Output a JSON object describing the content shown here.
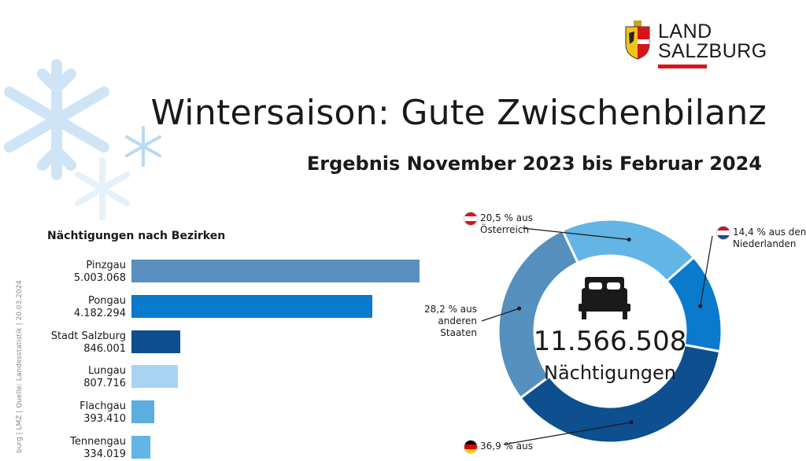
{
  "header": {
    "title": "Wintersaison: Gute Zwischenbilanz",
    "subtitle": "Ergebnis November 2023 bis Februar 2024"
  },
  "logo": {
    "line1": "LAND",
    "line2": "SALZBURG"
  },
  "source_note": "burg | LMZ | Quelle: Landesstatistik | 20.03.2024",
  "colors": {
    "accent_red": "#d7141a",
    "dark_blue": "#0d4f8f",
    "mid_blue": "#0a7acc",
    "steel_blue": "#5590bf",
    "light_blue": "#62b5e5",
    "pale_blue": "#a8d3f3"
  },
  "chart_data": [
    {
      "type": "bar",
      "orientation": "horizontal",
      "title": "Nächtigungen nach Bezirken",
      "categories": [
        "Pinzgau",
        "Pongau",
        "Stadt Salzburg",
        "Lungau",
        "Flachgau",
        "Tennengau"
      ],
      "value_labels": [
        "5.003.068",
        "4.182.294",
        "846.001",
        "807.716",
        "393.410",
        "334.019"
      ],
      "values": [
        5003068,
        4182294,
        846001,
        807716,
        393410,
        334019
      ],
      "colors": [
        "#5b8fc0",
        "#0a7acc",
        "#0d4f8f",
        "#a8d3f3",
        "#5aaee0",
        "#62b5e5"
      ]
    },
    {
      "type": "pie",
      "variant": "donut",
      "center_value": "11.566.508",
      "center_label": "Nächtigungen",
      "slices": [
        {
          "label": "20,5 % aus Österreich",
          "lines": [
            "20,5 % aus",
            "Österreich"
          ],
          "value": 20.5,
          "color": "#62b5e5",
          "flag": "austria"
        },
        {
          "label": "14,4 % aus den Niederlanden",
          "lines": [
            "14,4 % aus den",
            "Niederlanden"
          ],
          "value": 14.4,
          "color": "#0a7acc",
          "flag": "netherlands"
        },
        {
          "label": "36,9 % aus",
          "lines": [
            "36,9 % aus"
          ],
          "value": 36.9,
          "color": "#0d4f8f",
          "flag": "germany"
        },
        {
          "label": "28,2 % aus anderen Staaten",
          "lines": [
            "28,2 % aus",
            "anderen",
            "Staaten"
          ],
          "value": 28.2,
          "color": "#5590bf",
          "flag": ""
        }
      ]
    }
  ]
}
